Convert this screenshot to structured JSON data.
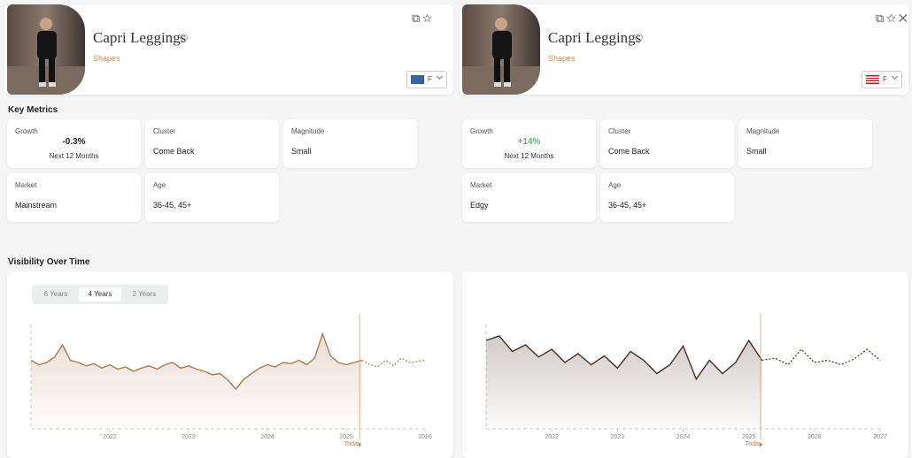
{
  "labels": {
    "key_metrics": "Key Metrics",
    "visibility": "Visibility Over Time"
  },
  "panels": [
    {
      "title": "Capri Leggings",
      "category": "Shapes",
      "region": "F",
      "flag": "eu",
      "metrics": [
        {
          "label": "Growth",
          "value": "-0.3%",
          "sub": "Next 12 Months",
          "color": "#222222"
        },
        {
          "label": "Cluster",
          "value": "Come Back"
        },
        {
          "label": "Magnitude",
          "value": "Small"
        },
        {
          "label": "Market",
          "value": "Mainstream"
        },
        {
          "label": "Age",
          "value": "36-45, 45+"
        }
      ],
      "tabs": [
        "6 Years",
        "4 Years",
        "2 Years"
      ],
      "active_tab": 1,
      "chart": {
        "type": "line",
        "x": [
          2021.0,
          2021.1,
          2021.2,
          2021.3,
          2021.4,
          2021.5,
          2021.6,
          2021.7,
          2021.8,
          2021.9,
          2022.0,
          2022.1,
          2022.2,
          2022.3,
          2022.4,
          2022.5,
          2022.6,
          2022.7,
          2022.8,
          2022.9,
          2023.0,
          2023.1,
          2023.2,
          2023.3,
          2023.4,
          2023.5,
          2023.6,
          2023.7,
          2023.8,
          2023.9,
          2024.0,
          2024.1,
          2024.2,
          2024.3,
          2024.4,
          2024.5,
          2024.6,
          2024.7,
          2024.8,
          2024.9,
          2025.0,
          2025.1,
          2025.2,
          2025.3,
          2025.4,
          2025.5,
          2025.6,
          2025.7,
          2025.8,
          2025.9,
          2026.0
        ],
        "series": [
          {
            "color": "#b07a4e",
            "values": [
              62,
              58,
              60,
              65,
              76,
              62,
              60,
              57,
              59,
              55,
              58,
              54,
              56,
              52,
              55,
              57,
              54,
              58,
              60,
              55,
              57,
              54,
              52,
              49,
              50,
              44,
              36,
              45,
              50,
              55,
              58,
              56,
              60,
              59,
              62,
              58,
              64,
              86,
              66,
              60,
              58,
              60,
              62,
              null,
              null,
              null,
              null,
              null,
              null,
              null,
              null
            ]
          },
          {
            "color": "#b07a4e",
            "dash": true,
            "values": [
              null,
              null,
              null,
              null,
              null,
              null,
              null,
              null,
              null,
              null,
              null,
              null,
              null,
              null,
              null,
              null,
              null,
              null,
              null,
              null,
              null,
              null,
              null,
              null,
              null,
              null,
              null,
              null,
              null,
              null,
              null,
              null,
              null,
              null,
              null,
              null,
              null,
              null,
              null,
              null,
              null,
              null,
              62,
              58,
              56,
              62,
              57,
              64,
              60,
              61,
              62
            ]
          }
        ],
        "xlim": [
          2021,
          2026
        ],
        "ylim": [
          0,
          100
        ],
        "xticks": [
          2022,
          2023,
          2024,
          2025,
          2026
        ],
        "today": {
          "value": 2025.17,
          "label": "Today"
        }
      }
    },
    {
      "title": "Capri Leggings",
      "category": "Shapes",
      "region": "F",
      "flag": "us",
      "metrics": [
        {
          "label": "Growth",
          "value": "+14%",
          "sub": "Next 12 Months",
          "color": "#5cb87a"
        },
        {
          "label": "Cluster",
          "value": "Come Back"
        },
        {
          "label": "Magnitude",
          "value": "Small"
        },
        {
          "label": "Market",
          "value": "Edgy"
        },
        {
          "label": "Age",
          "value": "36-45, 45+"
        }
      ],
      "chart": {
        "type": "line",
        "x": [
          2021.0,
          2021.2,
          2021.4,
          2021.6,
          2021.8,
          2022.0,
          2022.2,
          2022.4,
          2022.6,
          2022.8,
          2023.0,
          2023.2,
          2023.4,
          2023.6,
          2023.8,
          2024.0,
          2024.2,
          2024.4,
          2024.6,
          2024.8,
          2025.0,
          2025.2,
          2025.4,
          2025.6,
          2025.8,
          2026.0,
          2026.2,
          2026.4,
          2026.6,
          2026.8,
          2027.0
        ],
        "series": [
          {
            "color": "#4a2e22",
            "values": [
              80,
              84,
              70,
              76,
              65,
              72,
              60,
              68,
              58,
              66,
              55,
              70,
              62,
              50,
              58,
              75,
              45,
              62,
              50,
              60,
              80,
              62,
              null,
              null,
              null,
              null,
              null,
              null,
              null,
              null,
              null
            ]
          },
          {
            "color": "#4a2e22",
            "dash": true,
            "values": [
              null,
              null,
              null,
              null,
              null,
              null,
              null,
              null,
              null,
              null,
              null,
              null,
              null,
              null,
              null,
              null,
              null,
              null,
              null,
              null,
              null,
              62,
              64,
              58,
              72,
              60,
              62,
              58,
              63,
              72,
              62
            ]
          }
        ],
        "xlim": [
          2021,
          2027
        ],
        "ylim": [
          0,
          100
        ],
        "xticks": [
          2022,
          2023,
          2024,
          2025,
          2026,
          2027
        ],
        "today": {
          "value": 2025.18,
          "label": "Today"
        }
      }
    }
  ]
}
